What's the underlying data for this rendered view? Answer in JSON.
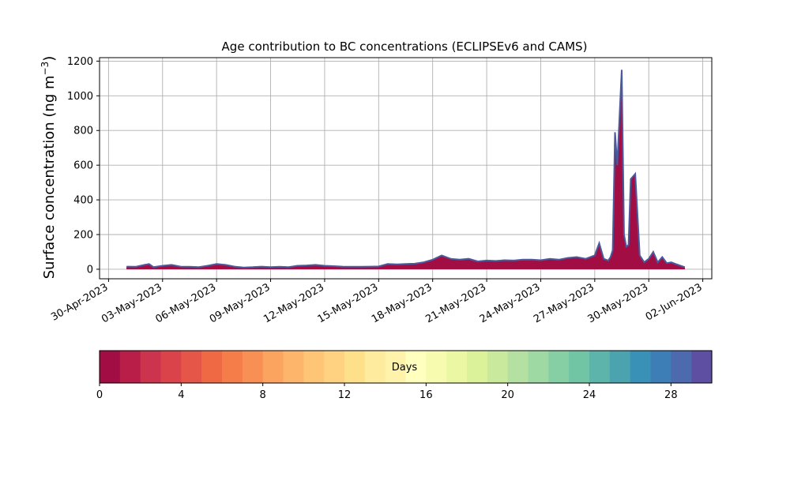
{
  "chart_data": [
    {
      "type": "area",
      "title": "Age contribution to BC concentrations (ECLIPSEv6 and CAMS)",
      "ylabel_main": "Surface concentration (ng m",
      "ylabel_sup": "−3",
      "ylabel_close": ")",
      "xlabel": "",
      "ylim": [
        -55,
        1220
      ],
      "grid": true,
      "yticks": [
        0,
        200,
        400,
        600,
        800,
        1000,
        1200
      ],
      "xticks": [
        "2023-04-30",
        "2023-05-03",
        "2023-05-06",
        "2023-05-09",
        "2023-05-12",
        "2023-05-15",
        "2023-05-18",
        "2023-05-21",
        "2023-05-24",
        "2023-05-27",
        "2023-05-30",
        "2023-06-02"
      ],
      "xtick_labels": [
        "30-Apr-2023",
        "03-May-2023",
        "06-May-2023",
        "09-May-2023",
        "12-May-2023",
        "15-May-2023",
        "18-May-2023",
        "21-May-2023",
        "24-May-2023",
        "27-May-2023",
        "30-May-2023",
        "02-Jun-2023"
      ],
      "xlim": [
        "2023-04-29T12:00",
        "2023-06-02T12:00"
      ],
      "series_total": {
        "name": "",
        "x": [
          "2023-05-01T00:00",
          "2023-05-01T12:00",
          "2023-05-02T00:00",
          "2023-05-02T06:00",
          "2023-05-02T12:00",
          "2023-05-03T00:00",
          "2023-05-03T12:00",
          "2023-05-04T00:00",
          "2023-05-04T12:00",
          "2023-05-05T00:00",
          "2023-05-05T12:00",
          "2023-05-06T00:00",
          "2023-05-06T12:00",
          "2023-05-07T00:00",
          "2023-05-07T12:00",
          "2023-05-08T00:00",
          "2023-05-08T12:00",
          "2023-05-09T00:00",
          "2023-05-09T12:00",
          "2023-05-10T00:00",
          "2023-05-10T12:00",
          "2023-05-11T00:00",
          "2023-05-11T12:00",
          "2023-05-12T00:00",
          "2023-05-12T12:00",
          "2023-05-13T00:00",
          "2023-05-13T12:00",
          "2023-05-14T00:00",
          "2023-05-14T12:00",
          "2023-05-15T00:00",
          "2023-05-15T12:00",
          "2023-05-16T00:00",
          "2023-05-16T12:00",
          "2023-05-17T00:00",
          "2023-05-17T12:00",
          "2023-05-18T00:00",
          "2023-05-18T12:00",
          "2023-05-19T00:00",
          "2023-05-19T12:00",
          "2023-05-20T00:00",
          "2023-05-20T12:00",
          "2023-05-21T00:00",
          "2023-05-21T12:00",
          "2023-05-22T00:00",
          "2023-05-22T12:00",
          "2023-05-23T00:00",
          "2023-05-23T12:00",
          "2023-05-24T00:00",
          "2023-05-24T12:00",
          "2023-05-25T00:00",
          "2023-05-25T12:00",
          "2023-05-26T00:00",
          "2023-05-26T12:00",
          "2023-05-27T00:00",
          "2023-05-27T06:00",
          "2023-05-27T12:00",
          "2023-05-27T18:00",
          "2023-05-27T21:00",
          "2023-05-28T00:00",
          "2023-05-28T03:00",
          "2023-05-28T06:00",
          "2023-05-28T12:00",
          "2023-05-28T15:00",
          "2023-05-28T18:00",
          "2023-05-28T21:00",
          "2023-05-29T00:00",
          "2023-05-29T06:00",
          "2023-05-29T12:00",
          "2023-05-29T18:00",
          "2023-05-30T00:00",
          "2023-05-30T06:00",
          "2023-05-30T12:00",
          "2023-05-30T18:00",
          "2023-05-31T00:00",
          "2023-05-31T06:00",
          "2023-05-31T12:00",
          "2023-06-01T00:00"
        ],
        "y": [
          15,
          14,
          25,
          30,
          12,
          20,
          25,
          15,
          14,
          12,
          20,
          30,
          25,
          15,
          10,
          12,
          15,
          12,
          14,
          12,
          20,
          22,
          25,
          20,
          18,
          15,
          14,
          14,
          15,
          16,
          30,
          28,
          30,
          32,
          40,
          55,
          80,
          60,
          55,
          60,
          45,
          50,
          48,
          52,
          50,
          55,
          55,
          52,
          60,
          55,
          65,
          70,
          60,
          80,
          150,
          60,
          50,
          70,
          110,
          790,
          600,
          1150,
          200,
          130,
          140,
          520,
          550,
          80,
          40,
          60,
          100,
          40,
          70,
          35,
          40,
          30,
          12
        ],
        "color": "#4a5a9c"
      },
      "colorbar": {
        "label": "Days",
        "ticks": [
          0,
          4,
          8,
          12,
          16,
          20,
          24,
          28
        ],
        "range": [
          0,
          30
        ],
        "colormap": "Spectral",
        "colors": [
          "#a20e44",
          "#b81e48",
          "#cc334c",
          "#db434b",
          "#e55649",
          "#ef6a44",
          "#f57d4a",
          "#f88f54",
          "#fba45f",
          "#fdb56b",
          "#fdc575",
          "#fed281",
          "#fee08b",
          "#feeb9d",
          "#fff3ab",
          "#ffffbe",
          "#f6fbb0",
          "#ebf7a3",
          "#dbf19a",
          "#c9ea9d",
          "#b4e0a2",
          "#9ed8a3",
          "#86cfa5",
          "#71c5a4",
          "#5db4aa",
          "#4ca3b0",
          "#3991b8",
          "#3e7eb7",
          "#4d6aae",
          "#5e4fa2"
        ]
      }
    }
  ]
}
